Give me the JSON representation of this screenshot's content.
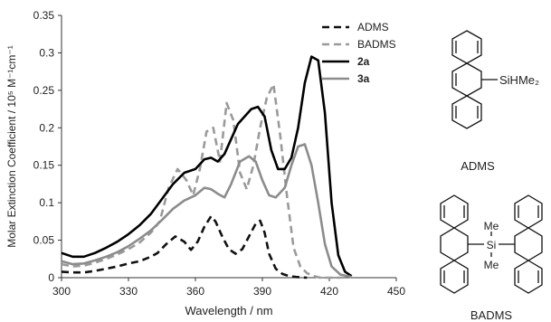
{
  "chart_data": {
    "type": "line",
    "xlabel": "Wavelength / nm",
    "ylabel": "Molar Extinction Coefficient / 10⁵ M⁻¹cm⁻¹",
    "xlim": [
      300,
      450
    ],
    "ylim": [
      0,
      0.35
    ],
    "x_ticks": [
      "300",
      "330",
      "360",
      "390",
      "420",
      "450"
    ],
    "y_ticks": [
      "0",
      "0.05",
      "0.1",
      "0.15",
      "0.2",
      "0.25",
      "0.3",
      "0.35"
    ],
    "grid": false,
    "legend_position": "top-right",
    "series": [
      {
        "name": "ADMS",
        "color": "#111111",
        "style": "dashed",
        "x": [
          300,
          305,
          310,
          315,
          320,
          325,
          330,
          335,
          340,
          343,
          347,
          351,
          355,
          358,
          361,
          364,
          367,
          369,
          372,
          375,
          378,
          381,
          384,
          387,
          389,
          391,
          393,
          396,
          399,
          402,
          405,
          410
        ],
        "y": [
          0.008,
          0.007,
          0.007,
          0.009,
          0.012,
          0.015,
          0.019,
          0.022,
          0.028,
          0.033,
          0.045,
          0.055,
          0.048,
          0.037,
          0.048,
          0.068,
          0.082,
          0.075,
          0.055,
          0.038,
          0.032,
          0.038,
          0.055,
          0.072,
          0.076,
          0.06,
          0.032,
          0.012,
          0.005,
          0.002,
          0.001,
          0.0
        ]
      },
      {
        "name": "BADMS",
        "color": "#9a9a9a",
        "style": "dashed",
        "x": [
          300,
          305,
          310,
          315,
          320,
          325,
          330,
          335,
          340,
          344,
          348,
          352,
          356,
          359,
          362,
          365,
          368,
          371,
          374,
          377,
          380,
          383,
          386,
          389,
          392,
          395,
          398,
          401,
          404,
          407,
          410,
          413,
          416,
          420,
          425
        ],
        "y": [
          0.018,
          0.015,
          0.016,
          0.02,
          0.025,
          0.031,
          0.038,
          0.047,
          0.06,
          0.075,
          0.12,
          0.145,
          0.13,
          0.11,
          0.145,
          0.195,
          0.2,
          0.155,
          0.233,
          0.21,
          0.14,
          0.118,
          0.15,
          0.2,
          0.24,
          0.258,
          0.19,
          0.11,
          0.04,
          0.015,
          0.006,
          0.002,
          0.0,
          0.0,
          0.0
        ]
      },
      {
        "name": "2a",
        "color": "#000000",
        "style": "solid",
        "x": [
          300,
          305,
          310,
          315,
          320,
          325,
          330,
          335,
          340,
          345,
          350,
          355,
          360,
          364,
          367,
          370,
          373,
          376,
          379,
          382,
          385,
          388,
          391,
          394,
          397,
          400,
          403,
          406,
          409,
          412,
          415,
          418,
          421,
          424,
          427,
          430
        ],
        "y": [
          0.033,
          0.028,
          0.028,
          0.033,
          0.04,
          0.048,
          0.058,
          0.07,
          0.085,
          0.105,
          0.125,
          0.14,
          0.145,
          0.158,
          0.16,
          0.155,
          0.165,
          0.185,
          0.205,
          0.215,
          0.225,
          0.228,
          0.215,
          0.17,
          0.145,
          0.145,
          0.16,
          0.2,
          0.26,
          0.295,
          0.29,
          0.22,
          0.1,
          0.03,
          0.008,
          0.002
        ]
      },
      {
        "name": "3a",
        "color": "#8c8c8c",
        "style": "solid",
        "x": [
          300,
          305,
          310,
          315,
          320,
          325,
          330,
          335,
          340,
          345,
          350,
          355,
          360,
          364,
          367,
          370,
          373,
          376,
          380,
          384,
          387,
          390,
          393,
          396,
          400,
          403,
          406,
          409,
          412,
          415,
          418,
          421,
          425,
          430
        ],
        "y": [
          0.022,
          0.018,
          0.019,
          0.023,
          0.028,
          0.034,
          0.042,
          0.052,
          0.063,
          0.077,
          0.092,
          0.103,
          0.11,
          0.12,
          0.118,
          0.112,
          0.107,
          0.125,
          0.155,
          0.162,
          0.155,
          0.13,
          0.11,
          0.107,
          0.12,
          0.15,
          0.175,
          0.178,
          0.15,
          0.1,
          0.045,
          0.015,
          0.004,
          0.001
        ]
      }
    ]
  },
  "structures": [
    {
      "label": "ADMS",
      "substituent": "SiHMe₂"
    },
    {
      "label": "BADMS",
      "substituents": [
        "Me",
        "Si",
        "Me"
      ]
    }
  ]
}
